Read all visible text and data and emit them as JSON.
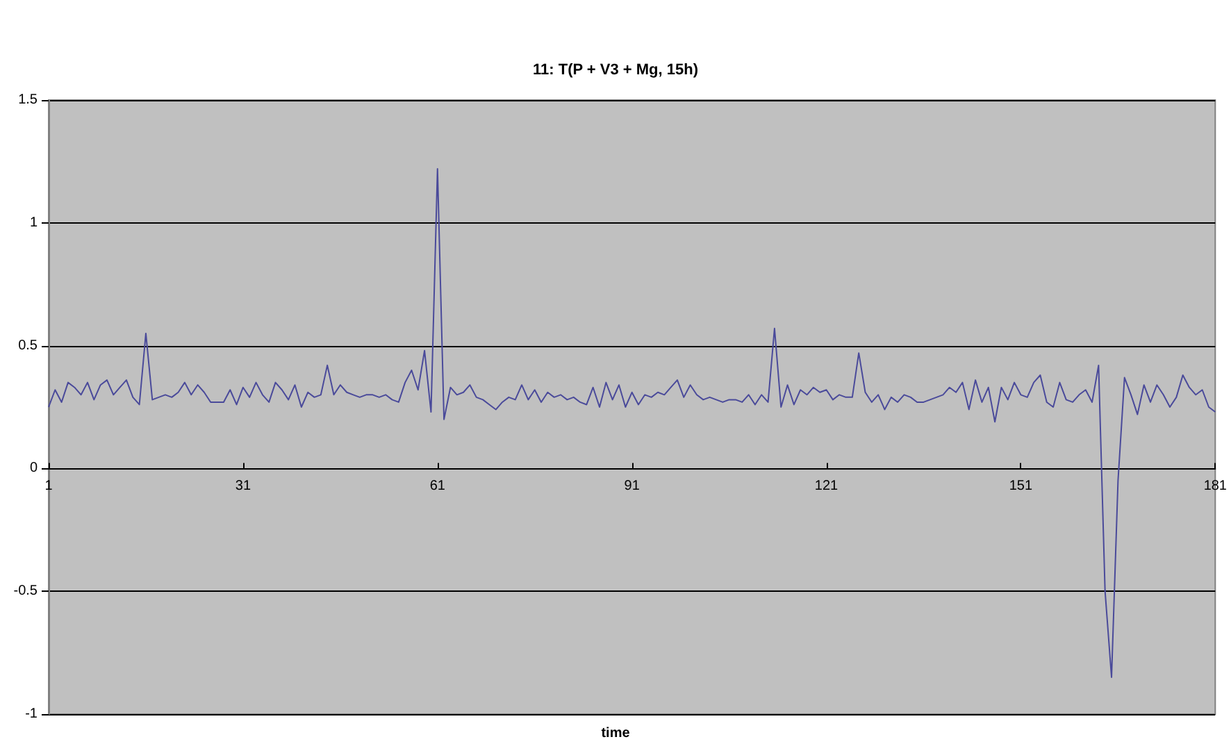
{
  "chart_data": {
    "type": "line",
    "title": "11: T(P + V3 + Mg, 15h)",
    "xlabel": "time",
    "xlim": [
      1,
      181
    ],
    "xticks": [
      1,
      31,
      61,
      91,
      121,
      151,
      181
    ],
    "ylim": [
      -1,
      1.5
    ],
    "yticks": [
      -1,
      -0.5,
      0,
      0.5,
      1,
      1.5
    ],
    "grid": "y",
    "marker": "none",
    "line_style": "solid",
    "x": [
      1,
      2,
      3,
      4,
      5,
      6,
      7,
      8,
      9,
      10,
      11,
      12,
      13,
      14,
      15,
      16,
      17,
      18,
      19,
      20,
      21,
      22,
      23,
      24,
      25,
      26,
      27,
      28,
      29,
      30,
      31,
      32,
      33,
      34,
      35,
      36,
      37,
      38,
      39,
      40,
      41,
      42,
      43,
      44,
      45,
      46,
      47,
      48,
      49,
      50,
      51,
      52,
      53,
      54,
      55,
      56,
      57,
      58,
      59,
      60,
      61,
      62,
      63,
      64,
      65,
      66,
      67,
      68,
      69,
      70,
      71,
      72,
      73,
      74,
      75,
      76,
      77,
      78,
      79,
      80,
      81,
      82,
      83,
      84,
      85,
      86,
      87,
      88,
      89,
      90,
      91,
      92,
      93,
      94,
      95,
      96,
      97,
      98,
      99,
      100,
      101,
      102,
      103,
      104,
      105,
      106,
      107,
      108,
      109,
      110,
      111,
      112,
      113,
      114,
      115,
      116,
      117,
      118,
      119,
      120,
      121,
      122,
      123,
      124,
      125,
      126,
      127,
      128,
      129,
      130,
      131,
      132,
      133,
      134,
      135,
      136,
      137,
      138,
      139,
      140,
      141,
      142,
      143,
      144,
      145,
      146,
      147,
      148,
      149,
      150,
      151,
      152,
      153,
      154,
      155,
      156,
      157,
      158,
      159,
      160,
      161,
      162,
      163,
      164,
      165,
      166,
      167,
      168,
      169,
      170,
      171,
      172,
      173,
      174,
      175,
      176,
      177,
      178,
      179,
      180,
      181
    ],
    "series": [
      {
        "color": "#4a4a9a",
        "values": [
          0.25,
          0.32,
          0.27,
          0.35,
          0.33,
          0.3,
          0.35,
          0.28,
          0.34,
          0.36,
          0.3,
          0.33,
          0.36,
          0.29,
          0.26,
          0.55,
          0.28,
          0.29,
          0.3,
          0.29,
          0.31,
          0.35,
          0.3,
          0.34,
          0.31,
          0.27,
          0.27,
          0.27,
          0.32,
          0.26,
          0.33,
          0.29,
          0.35,
          0.3,
          0.27,
          0.35,
          0.32,
          0.28,
          0.34,
          0.25,
          0.31,
          0.29,
          0.3,
          0.42,
          0.3,
          0.34,
          0.31,
          0.3,
          0.29,
          0.3,
          0.3,
          0.29,
          0.3,
          0.28,
          0.27,
          0.35,
          0.4,
          0.32,
          0.48,
          0.23,
          1.22,
          0.2,
          0.33,
          0.3,
          0.31,
          0.34,
          0.29,
          0.28,
          0.26,
          0.24,
          0.27,
          0.29,
          0.28,
          0.34,
          0.28,
          0.32,
          0.27,
          0.31,
          0.29,
          0.3,
          0.28,
          0.29,
          0.27,
          0.26,
          0.33,
          0.25,
          0.35,
          0.28,
          0.34,
          0.25,
          0.31,
          0.26,
          0.3,
          0.29,
          0.31,
          0.3,
          0.33,
          0.36,
          0.29,
          0.34,
          0.3,
          0.28,
          0.29,
          0.28,
          0.27,
          0.28,
          0.28,
          0.27,
          0.3,
          0.26,
          0.3,
          0.27,
          0.57,
          0.25,
          0.34,
          0.26,
          0.32,
          0.3,
          0.33,
          0.31,
          0.32,
          0.28,
          0.3,
          0.29,
          0.29,
          0.47,
          0.31,
          0.27,
          0.3,
          0.24,
          0.29,
          0.27,
          0.3,
          0.29,
          0.27,
          0.27,
          0.28,
          0.29,
          0.3,
          0.33,
          0.31,
          0.35,
          0.24,
          0.36,
          0.27,
          0.33,
          0.19,
          0.33,
          0.28,
          0.35,
          0.3,
          0.29,
          0.35,
          0.38,
          0.27,
          0.25,
          0.35,
          0.28,
          0.27,
          0.3,
          0.32,
          0.27,
          0.42,
          -0.5,
          -0.85,
          -0.05,
          0.37,
          0.3,
          0.22,
          0.34,
          0.27,
          0.34,
          0.3,
          0.25,
          0.29,
          0.38,
          0.33,
          0.3,
          0.32,
          0.25,
          0.23
        ]
      }
    ]
  }
}
